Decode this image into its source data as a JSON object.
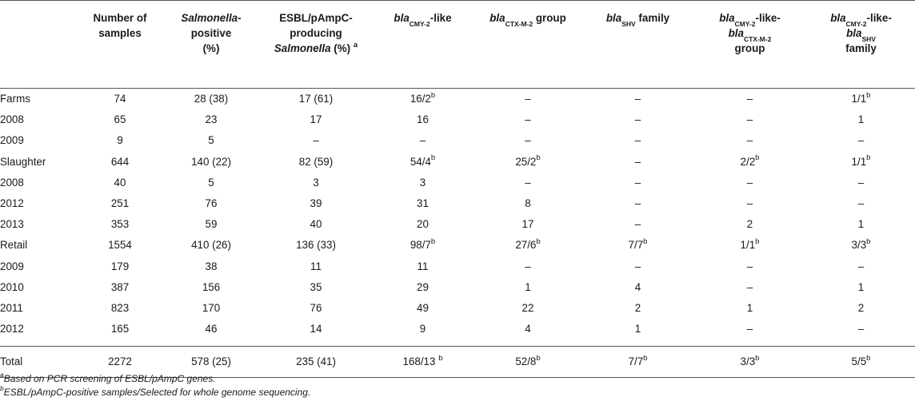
{
  "headers": {
    "number_of_samples": [
      "Number of",
      "samples"
    ],
    "salmonella_positive": {
      "italic": "Salmonella",
      "rest1": "-",
      "rest2": "positive",
      "rest3": "(%)"
    },
    "esbl_producing": {
      "line1": "ESBL/pAmpC-",
      "line2": "producing",
      "italic": "Salmonella",
      "rest": " (%) ",
      "sup": "a"
    },
    "bla_cmy": {
      "italic": "bla",
      "sub": "CMY-2",
      "rest": "-like"
    },
    "bla_ctx": {
      "italic": "bla",
      "sub": "CTX-M-2",
      "rest": " group"
    },
    "bla_shv": {
      "italic": "bla",
      "sub": "SHV",
      "rest": " family"
    },
    "bla_cmy_ctx": {
      "italic1": "bla",
      "sub1": "CMY-2",
      "rest1": "-like-",
      "italic2": "bla",
      "sub2": "CTX-M-2",
      "rest2": "group"
    },
    "bla_cmy_shv": {
      "italic1": "bla",
      "sub1": "CMY-2",
      "rest1": "-like-",
      "italic2": "bla",
      "sub2": "SHV",
      "rest2": "family"
    }
  },
  "rows": [
    {
      "label": "Farms",
      "n": "74",
      "pos": "28 (38)",
      "esbl": "17 (61)",
      "cmy": "16/2",
      "cmy_sup": "b",
      "ctx": "–",
      "ctx_sup": "",
      "shv": "–",
      "shv_sup": "",
      "cmyctx": "–",
      "cmyctx_sup": "",
      "cmyshv": "1/1",
      "cmyshv_sup": "b"
    },
    {
      "label": "2008",
      "n": "65",
      "pos": "23",
      "esbl": "17",
      "cmy": "16",
      "cmy_sup": "",
      "ctx": "–",
      "ctx_sup": "",
      "shv": "–",
      "shv_sup": "",
      "cmyctx": "–",
      "cmyctx_sup": "",
      "cmyshv": "1",
      "cmyshv_sup": ""
    },
    {
      "label": "2009",
      "n": "9",
      "pos": "5",
      "esbl": "–",
      "cmy": "–",
      "cmy_sup": "",
      "ctx": "–",
      "ctx_sup": "",
      "shv": "–",
      "shv_sup": "",
      "cmyctx": "–",
      "cmyctx_sup": "",
      "cmyshv": "–",
      "cmyshv_sup": ""
    },
    {
      "label": "Slaughter",
      "n": "644",
      "pos": "140 (22)",
      "esbl": "82 (59)",
      "cmy": "54/4",
      "cmy_sup": "b",
      "ctx": "25/2",
      "ctx_sup": "b",
      "shv": "–",
      "shv_sup": "",
      "cmyctx": "2/2",
      "cmyctx_sup": "b",
      "cmyshv": "1/1",
      "cmyshv_sup": "b"
    },
    {
      "label": "2008",
      "n": "40",
      "pos": "5",
      "esbl": "3",
      "cmy": "3",
      "cmy_sup": "",
      "ctx": "–",
      "ctx_sup": "",
      "shv": "–",
      "shv_sup": "",
      "cmyctx": "–",
      "cmyctx_sup": "",
      "cmyshv": "–",
      "cmyshv_sup": ""
    },
    {
      "label": "2012",
      "n": "251",
      "pos": "76",
      "esbl": "39",
      "cmy": "31",
      "cmy_sup": "",
      "ctx": "8",
      "ctx_sup": "",
      "shv": "–",
      "shv_sup": "",
      "cmyctx": "–",
      "cmyctx_sup": "",
      "cmyshv": "–",
      "cmyshv_sup": ""
    },
    {
      "label": "2013",
      "n": "353",
      "pos": "59",
      "esbl": "40",
      "cmy": "20",
      "cmy_sup": "",
      "ctx": "17",
      "ctx_sup": "",
      "shv": "–",
      "shv_sup": "",
      "cmyctx": "2",
      "cmyctx_sup": "",
      "cmyshv": "1",
      "cmyshv_sup": ""
    },
    {
      "label": "Retail",
      "n": "1554",
      "pos": "410 (26)",
      "esbl": "136 (33)",
      "cmy": "98/7",
      "cmy_sup": "b",
      "ctx": "27/6",
      "ctx_sup": "b",
      "shv": "7/7",
      "shv_sup": "b",
      "cmyctx": "1/1",
      "cmyctx_sup": "b",
      "cmyshv": "3/3",
      "cmyshv_sup": "b"
    },
    {
      "label": "2009",
      "n": "179",
      "pos": "38",
      "esbl": "11",
      "cmy": "11",
      "cmy_sup": "",
      "ctx": "–",
      "ctx_sup": "",
      "shv": "–",
      "shv_sup": "",
      "cmyctx": "–",
      "cmyctx_sup": "",
      "cmyshv": "–",
      "cmyshv_sup": ""
    },
    {
      "label": "2010",
      "n": "387",
      "pos": "156",
      "esbl": "35",
      "cmy": "29",
      "cmy_sup": "",
      "ctx": "1",
      "ctx_sup": "",
      "shv": "4",
      "shv_sup": "",
      "cmyctx": "–",
      "cmyctx_sup": "",
      "cmyshv": "1",
      "cmyshv_sup": ""
    },
    {
      "label": "2011",
      "n": "823",
      "pos": "170",
      "esbl": "76",
      "cmy": "49",
      "cmy_sup": "",
      "ctx": "22",
      "ctx_sup": "",
      "shv": "2",
      "shv_sup": "",
      "cmyctx": "1",
      "cmyctx_sup": "",
      "cmyshv": "2",
      "cmyshv_sup": ""
    },
    {
      "label": "2012",
      "n": "165",
      "pos": "46",
      "esbl": "14",
      "cmy": "9",
      "cmy_sup": "",
      "ctx": "4",
      "ctx_sup": "",
      "shv": "1",
      "shv_sup": "",
      "cmyctx": "–",
      "cmyctx_sup": "",
      "cmyshv": "–",
      "cmyshv_sup": ""
    }
  ],
  "total": {
    "label": "Total",
    "n": "2272",
    "pos": "578 (25)",
    "esbl": "235 (41)",
    "cmy": "168/13 ",
    "cmy_sup": "b",
    "ctx": "52/8",
    "ctx_sup": "b",
    "shv": "7/7",
    "shv_sup": "b",
    "cmyctx": "3/3",
    "cmyctx_sup": "b",
    "cmyshv": "5/5",
    "cmyshv_sup": "b"
  },
  "footnotes": [
    {
      "sup": "a",
      "text": "Based on PCR screening of ESBL/pAmpC genes."
    },
    {
      "sup": "b",
      "text": "ESBL/pAmpC-positive samples/Selected for whole genome sequencing."
    }
  ]
}
